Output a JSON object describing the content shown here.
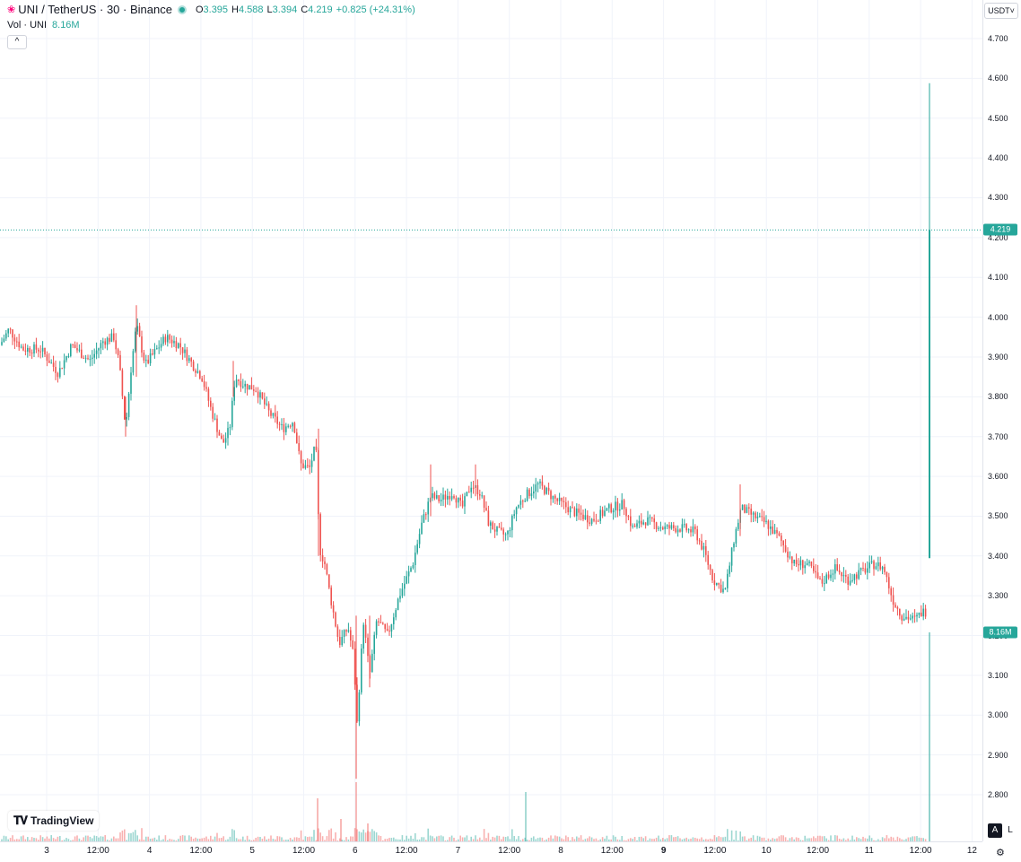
{
  "header": {
    "symbol": "UNI / TetherUS · 30 · Binance",
    "open_key": "O",
    "open": "3.395",
    "high_key": "H",
    "high": "4.588",
    "low_key": "L",
    "low": "3.394",
    "close_key": "C",
    "close": "4.219",
    "change": "+0.825 (+24.31%)"
  },
  "volume_legend": {
    "label": "Vol · UNI",
    "value": "8.16M"
  },
  "currency": "USDT˅",
  "collapse_glyph": "^",
  "price_tag": "4.219",
  "volume_tag": "8.16M",
  "watermark": "TradingView",
  "axis_buttons": {
    "auto": "A",
    "log": "L"
  },
  "colors": {
    "up": "#26a69a",
    "down": "#ef5350",
    "grid": "#f0f3fa",
    "scale_border": "#e0e3eb"
  },
  "icons": {
    "settings": "gear-icon",
    "logo": "tradingview-logo-icon",
    "status": "status-dot-icon"
  },
  "chart_data": {
    "type": "candlestick",
    "price_range": [
      2.74,
      4.74
    ],
    "price_ticks": [
      "4.700",
      "4.600",
      "4.500",
      "4.400",
      "4.300",
      "4.200",
      "4.100",
      "4.000",
      "3.900",
      "3.800",
      "3.700",
      "3.600",
      "3.500",
      "3.400",
      "3.300",
      "3.200",
      "3.100",
      "3.000",
      "2.900",
      "2.800"
    ],
    "time_ticks": [
      {
        "label": "3",
        "bold": false
      },
      {
        "label": "12:00",
        "bold": false
      },
      {
        "label": "4",
        "bold": false
      },
      {
        "label": "12:00",
        "bold": false
      },
      {
        "label": "5",
        "bold": false
      },
      {
        "label": "12:00",
        "bold": false
      },
      {
        "label": "6",
        "bold": false
      },
      {
        "label": "12:00",
        "bold": false
      },
      {
        "label": "7",
        "bold": false
      },
      {
        "label": "12:00",
        "bold": false
      },
      {
        "label": "8",
        "bold": false
      },
      {
        "label": "12:00",
        "bold": false
      },
      {
        "label": "9",
        "bold": true
      },
      {
        "label": "12:00",
        "bold": false
      },
      {
        "label": "10",
        "bold": false
      },
      {
        "label": "12:00",
        "bold": false
      },
      {
        "label": "11",
        "bold": false
      },
      {
        "label": "12:00",
        "bold": false
      },
      {
        "label": "12",
        "bold": false
      }
    ],
    "path_anchors": [
      [
        0,
        3.93
      ],
      [
        10,
        3.97
      ],
      [
        25,
        3.92
      ],
      [
        45,
        3.92
      ],
      [
        65,
        3.86
      ],
      [
        80,
        3.93
      ],
      [
        100,
        3.89
      ],
      [
        115,
        3.94
      ],
      [
        127,
        3.95
      ],
      [
        133,
        3.88
      ],
      [
        140,
        3.72
      ],
      [
        146,
        3.87
      ],
      [
        152,
        3.98
      ],
      [
        162,
        3.88
      ],
      [
        175,
        3.92
      ],
      [
        185,
        3.95
      ],
      [
        200,
        3.93
      ],
      [
        215,
        3.88
      ],
      [
        225,
        3.85
      ],
      [
        235,
        3.77
      ],
      [
        248,
        3.68
      ],
      [
        256,
        3.72
      ],
      [
        262,
        3.85
      ],
      [
        272,
        3.83
      ],
      [
        285,
        3.82
      ],
      [
        300,
        3.76
      ],
      [
        315,
        3.72
      ],
      [
        327,
        3.74
      ],
      [
        335,
        3.63
      ],
      [
        345,
        3.62
      ],
      [
        352,
        3.68
      ],
      [
        356,
        3.42
      ],
      [
        362,
        3.38
      ],
      [
        368,
        3.3
      ],
      [
        378,
        3.18
      ],
      [
        388,
        3.22
      ],
      [
        394,
        3.15
      ],
      [
        398,
        2.98
      ],
      [
        405,
        3.24
      ],
      [
        412,
        3.1
      ],
      [
        420,
        3.24
      ],
      [
        432,
        3.2
      ],
      [
        445,
        3.3
      ],
      [
        460,
        3.38
      ],
      [
        470,
        3.48
      ],
      [
        480,
        3.55
      ],
      [
        490,
        3.54
      ],
      [
        505,
        3.56
      ],
      [
        515,
        3.52
      ],
      [
        525,
        3.58
      ],
      [
        535,
        3.56
      ],
      [
        545,
        3.48
      ],
      [
        555,
        3.46
      ],
      [
        565,
        3.45
      ],
      [
        575,
        3.52
      ],
      [
        585,
        3.55
      ],
      [
        600,
        3.58
      ],
      [
        620,
        3.54
      ],
      [
        640,
        3.51
      ],
      [
        660,
        3.49
      ],
      [
        680,
        3.52
      ],
      [
        695,
        3.53
      ],
      [
        705,
        3.47
      ],
      [
        720,
        3.49
      ],
      [
        740,
        3.47
      ],
      [
        760,
        3.47
      ],
      [
        775,
        3.46
      ],
      [
        785,
        3.41
      ],
      [
        795,
        3.34
      ],
      [
        808,
        3.31
      ],
      [
        818,
        3.44
      ],
      [
        826,
        3.52
      ],
      [
        840,
        3.5
      ],
      [
        855,
        3.48
      ],
      [
        870,
        3.44
      ],
      [
        885,
        3.38
      ],
      [
        900,
        3.38
      ],
      [
        915,
        3.33
      ],
      [
        930,
        3.37
      ],
      [
        945,
        3.34
      ],
      [
        960,
        3.36
      ],
      [
        975,
        3.38
      ],
      [
        985,
        3.37
      ],
      [
        995,
        3.29
      ],
      [
        1005,
        3.25
      ],
      [
        1020,
        3.24
      ],
      [
        1028,
        3.26
      ],
      [
        1033,
        3.26
      ]
    ],
    "final_candle": {
      "open": 3.395,
      "high": 4.588,
      "low": 3.394,
      "close": 4.219
    },
    "last_volume": "8.16M"
  }
}
